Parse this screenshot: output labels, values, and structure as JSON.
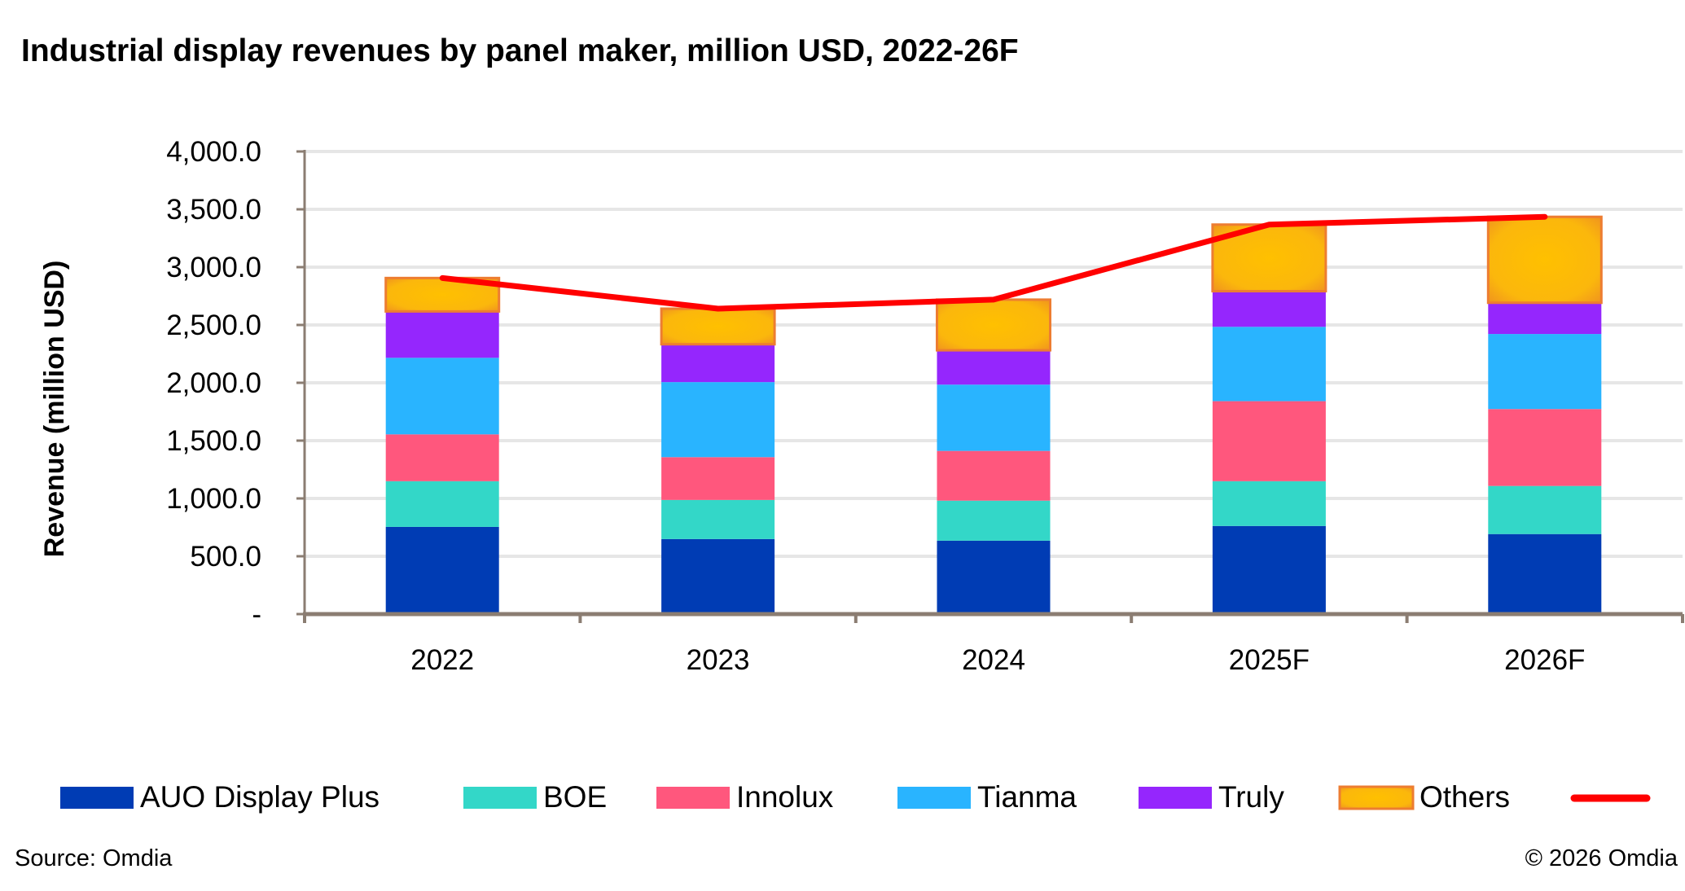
{
  "chart_data": {
    "type": "bar",
    "stacked": true,
    "title": "Industrial display revenues by panel maker, million USD, 2022-26F",
    "xlabel": "",
    "ylabel": "Revenue (million USD)",
    "ylim": [
      0,
      4000
    ],
    "yticks": [
      0,
      500,
      1000,
      1500,
      2000,
      2500,
      3000,
      3500,
      4000
    ],
    "ytick_labels": [
      "-",
      "500.0",
      "1,000.0",
      "1,500.0",
      "2,000.0",
      "2,500.0",
      "3,000.0",
      "3,500.0",
      "4,000.0"
    ],
    "grid": true,
    "legend_placement": "bottom",
    "categories": [
      "2022",
      "2023",
      "2024",
      "2025F",
      "2026F"
    ],
    "series": [
      {
        "name": "AUO Display Plus",
        "color": "#003CB4",
        "values": [
          754,
          649,
          635,
          762,
          692
        ]
      },
      {
        "name": "BOE",
        "color": "#33D7C8",
        "values": [
          395,
          338,
          346,
          387,
          416
        ]
      },
      {
        "name": "Innolux",
        "color": "#FF577D",
        "values": [
          405,
          370,
          430,
          692,
          665
        ]
      },
      {
        "name": "Tianma",
        "color": "#29B4FF",
        "values": [
          662,
          649,
          573,
          643,
          649
        ]
      },
      {
        "name": "Truly",
        "color": "#9526FD",
        "values": [
          401,
          327,
          297,
          308,
          270
        ]
      },
      {
        "name": "Others",
        "color": "#FDB80A",
        "border": "#ED7D31",
        "values": [
          289,
          308,
          438,
          576,
          743
        ]
      }
    ],
    "line": {
      "name": "",
      "color": "#FF0000",
      "values": [
        2906,
        2641,
        2719,
        3368,
        3435
      ]
    }
  },
  "footer": {
    "source": "Source: Omdia",
    "copyright": "©  2026 Omdia"
  }
}
